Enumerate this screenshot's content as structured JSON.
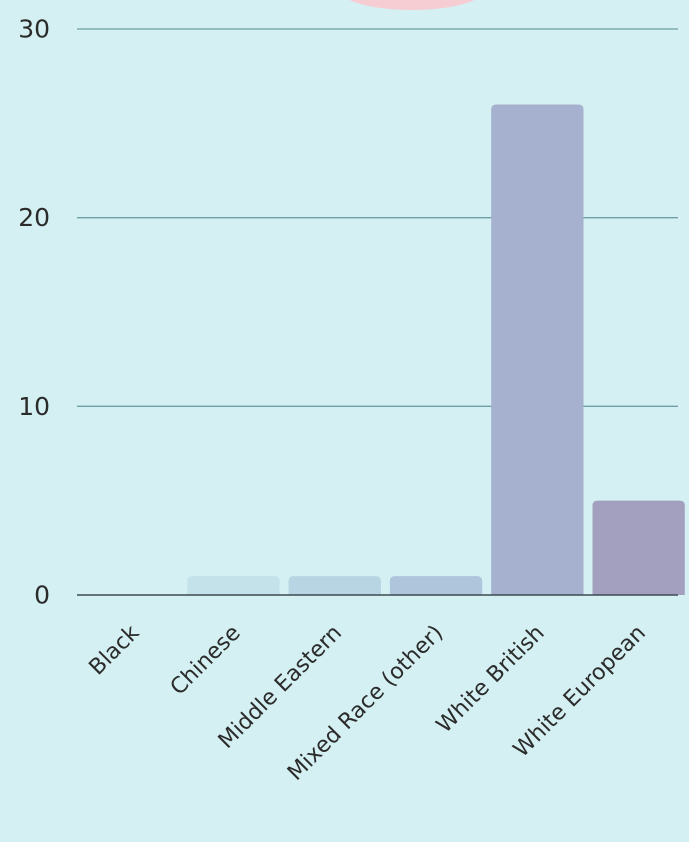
{
  "chart_data": {
    "type": "bar",
    "categories": [
      "Black",
      "Chinese",
      "Middle Eastern",
      "Mixed Race (other)",
      "White British",
      "White European"
    ],
    "values": [
      0,
      1,
      1,
      1,
      26,
      5
    ],
    "ylim": [
      0,
      30
    ],
    "yticks": [
      0,
      10,
      20,
      30
    ],
    "grid": true,
    "title": "",
    "xlabel": "",
    "ylabel": ""
  },
  "colors": {
    "background": "#d4f0f2",
    "grid": "#6e9ea6",
    "axis": "#3c4a50",
    "text": "#2b2b2b",
    "bars": [
      "#c3e2ea",
      "#c3e2ea",
      "#b7d5e3",
      "#aec5db",
      "#a5b1cf",
      "#a29fbf"
    ],
    "decor": "#f6cdd3"
  }
}
